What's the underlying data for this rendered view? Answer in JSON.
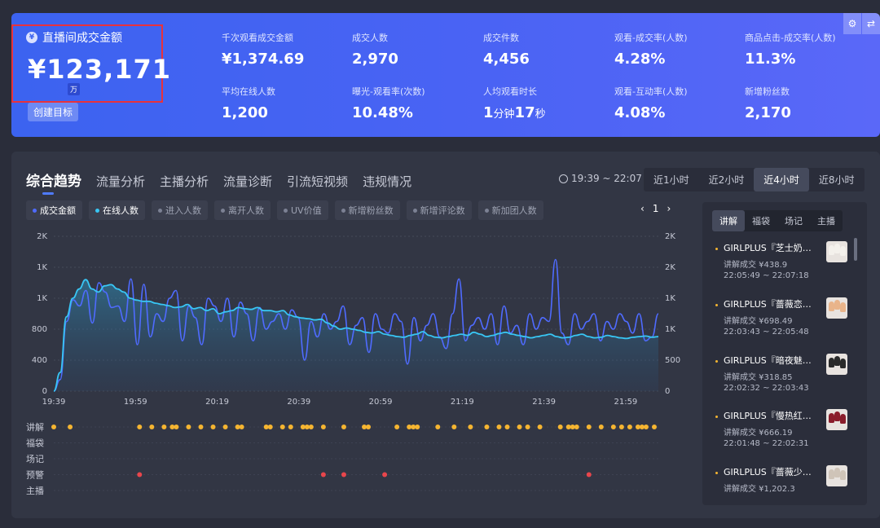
{
  "banner": {
    "gmv_label": "直播间成交金额",
    "gmv_value": "¥123,171",
    "gmv_unit": "万",
    "target_button": "创建目标",
    "metrics": [
      {
        "label": "千次观看成交金额",
        "value": "¥1,374.69"
      },
      {
        "label": "成交人数",
        "value": "2,970"
      },
      {
        "label": "成交件数",
        "value": "4,456"
      },
      {
        "label": "观看-成交率(人数)",
        "value": "4.28%"
      },
      {
        "label": "商品点击-成交率(人数)",
        "value": "11.3%"
      },
      {
        "label": "平均在线人数",
        "value": "1,200"
      },
      {
        "label": "曝光-观看率(次数)",
        "value": "10.48%"
      },
      {
        "label": "人均观看时长",
        "value_min": "1",
        "unit_min": "分钟",
        "value_sec": "17",
        "unit_sec": "秒"
      },
      {
        "label": "观看-互动率(人数)",
        "value": "4.08%"
      },
      {
        "label": "新增粉丝数",
        "value": "2,170"
      }
    ],
    "icons": [
      "gear-icon",
      "swap-icon"
    ]
  },
  "panel": {
    "tabs": [
      "综合趋势",
      "流量分析",
      "主播分析",
      "流量诊断",
      "引流短视频",
      "违规情况"
    ],
    "active_tab": 0,
    "time_range": "19:39 ~ 22:07",
    "range_buttons": [
      "近1小时",
      "近2小时",
      "近4小时",
      "近8小时"
    ],
    "active_range": 2,
    "legend": [
      {
        "label": "成交金额",
        "on": true,
        "color": "#4f6bff"
      },
      {
        "label": "在线人数",
        "on": true,
        "color": "#38c6f4"
      },
      {
        "label": "进入人数",
        "on": false
      },
      {
        "label": "离开人数",
        "on": false
      },
      {
        "label": "UV价值",
        "on": false
      },
      {
        "label": "新增粉丝数",
        "on": false
      },
      {
        "label": "新增评论数",
        "on": false
      },
      {
        "label": "新加团人数",
        "on": false
      }
    ],
    "pager": {
      "page": "1",
      "prev": "‹",
      "next": "›"
    }
  },
  "chart_data": {
    "type": "line",
    "x_ticks": [
      "19:39",
      "19:59",
      "20:19",
      "20:39",
      "20:59",
      "21:19",
      "21:39",
      "21:59"
    ],
    "x_range_minutes": [
      0,
      148
    ],
    "y_left_ticks": [
      "0",
      "400",
      "800",
      "1K",
      "1K",
      "2K"
    ],
    "y_right_ticks": [
      "0",
      "500",
      "1K",
      "1K",
      "2K",
      "2K"
    ],
    "y_left_range": [
      0,
      2000
    ],
    "y_right_range": [
      0,
      2500
    ],
    "series": [
      {
        "name": "成交金额",
        "axis": "left",
        "color": "#4f6bff",
        "values": [
          0,
          150,
          900,
          1180,
          1100,
          1300,
          880,
          1400,
          1280,
          1080,
          1100,
          900,
          1450,
          600,
          1380,
          700,
          1000,
          900,
          1200,
          1300,
          650,
          1100,
          950,
          600,
          1200,
          1100,
          900,
          1200,
          700,
          1150,
          1000,
          650,
          1080,
          800,
          900,
          1000,
          800,
          1050,
          950,
          400,
          900,
          700,
          1000,
          800,
          900,
          1100,
          600,
          850,
          950,
          500,
          1000,
          800,
          750,
          1000,
          900,
          350,
          950,
          650,
          850,
          1000,
          700,
          550,
          1000,
          1450,
          650,
          850,
          950,
          800,
          1000,
          600,
          1100,
          750,
          850,
          600,
          1000,
          800,
          950,
          900,
          1700,
          750,
          600,
          1000,
          800,
          900,
          1000,
          650,
          900,
          800,
          1000,
          900,
          750,
          1000,
          650,
          700,
          1000
        ]
      },
      {
        "name": "在线人数",
        "axis": "right",
        "color": "#38c6f4",
        "values": [
          0,
          300,
          1200,
          1500,
          1650,
          1800,
          1650,
          1600,
          1700,
          1720,
          1650,
          1600,
          1500,
          1470,
          1450,
          1450,
          1420,
          1400,
          1380,
          1350,
          1360,
          1400,
          1330,
          1350,
          1300,
          1330,
          1250,
          1280,
          1300,
          1350,
          1330,
          1320,
          1350,
          1300,
          1300,
          1280,
          1300,
          1230,
          1200,
          1180,
          1170,
          1150,
          1160,
          1100,
          1050,
          1000,
          1020,
          1000,
          980,
          950,
          940,
          960,
          920,
          900,
          880,
          870,
          900,
          920,
          960,
          900,
          870,
          860,
          880,
          900,
          920,
          900,
          950,
          920,
          880,
          900,
          930,
          950,
          920,
          900,
          880,
          860,
          880,
          900,
          920,
          880,
          860,
          870,
          900,
          920,
          880,
          860,
          870,
          900,
          880,
          860,
          850,
          870,
          880,
          890,
          870,
          880
        ]
      }
    ]
  },
  "events": {
    "row_labels": [
      "讲解",
      "福袋",
      "场记",
      "预警",
      "主播"
    ],
    "row_colors": [
      "#f5b531",
      null,
      null,
      "#e8464c",
      null
    ],
    "explain_minutes": [
      0,
      4,
      21,
      24,
      27,
      29,
      30,
      33,
      36,
      39,
      42,
      45,
      46,
      52,
      53,
      56,
      58,
      61,
      62,
      63,
      66,
      71,
      76,
      77,
      84,
      87,
      88,
      89,
      94,
      98,
      102,
      106,
      109,
      111,
      114,
      116,
      119,
      124,
      126,
      127,
      128,
      131,
      134,
      137,
      139,
      141,
      143,
      144,
      145,
      147
    ],
    "warning_minutes": [
      21,
      66,
      71,
      81,
      131
    ]
  },
  "side": {
    "tabs": [
      "讲解",
      "福袋",
      "场记",
      "主播"
    ],
    "active_tab": 0,
    "items": [
      {
        "title": "GIRLPLUS『芝士奶…",
        "sales": "讲解成交 ¥438.9",
        "time": "22:05:49 ~ 22:07:18",
        "nail_color": "#f4f1ec"
      },
      {
        "title": "GIRLPLUS『蔷薇恋…",
        "sales": "讲解成交 ¥698.49",
        "time": "22:03:43 ~ 22:05:48",
        "nail_color": "#e9b48a"
      },
      {
        "title": "GIRLPLUS『暗夜魅…",
        "sales": "讲解成交 ¥318.85",
        "time": "22:02:32 ~ 22:03:43",
        "nail_color": "#2a2a2a"
      },
      {
        "title": "GIRLPLUS『慢热红…",
        "sales": "讲解成交 ¥666.19",
        "time": "22:01:48 ~ 22:02:31",
        "nail_color": "#8a1d2b"
      },
      {
        "title": "GIRLPLUS『蔷薇少…",
        "sales": "讲解成交 ¥1,202.3",
        "time": "",
        "nail_color": "#cfc4b8"
      }
    ]
  }
}
